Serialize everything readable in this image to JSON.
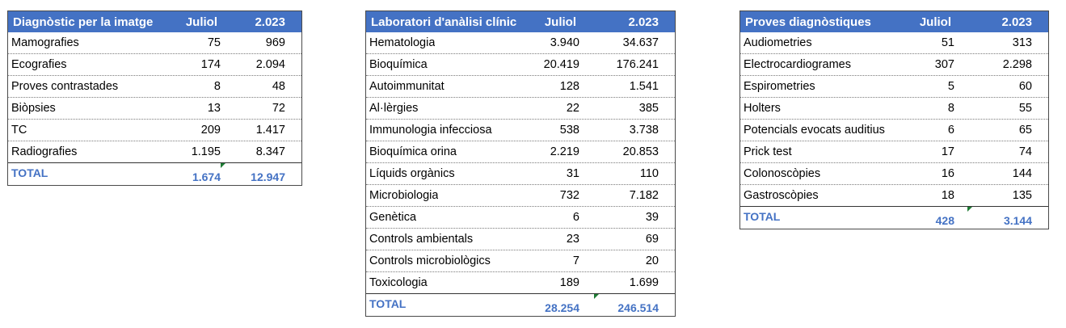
{
  "tables": [
    {
      "header": [
        "Diagnòstic per la imatge",
        "Juliol",
        "2.023"
      ],
      "rows": [
        [
          "Mamografies",
          "75",
          "969"
        ],
        [
          "Ecografies",
          "174",
          "2.094"
        ],
        [
          "Proves contrastades",
          "8",
          "48"
        ],
        [
          "Biòpsies",
          "13",
          "72"
        ],
        [
          "TC",
          "209",
          "1.417"
        ],
        [
          "Radiografies",
          "1.195",
          "8.347"
        ]
      ],
      "total": [
        "TOTAL",
        "1.674",
        "12.947"
      ]
    },
    {
      "header": [
        "Laboratori d'anàlisi clínic",
        "Juliol",
        "2.023"
      ],
      "rows": [
        [
          "Hematologia",
          "3.940",
          "34.637"
        ],
        [
          "Bioquímica",
          "20.419",
          "176.241"
        ],
        [
          "Autoimmunitat",
          "128",
          "1.541"
        ],
        [
          "Al·lèrgies",
          "22",
          "385"
        ],
        [
          "Immunologia infecciosa",
          "538",
          "3.738"
        ],
        [
          "Bioquímica orina",
          "2.219",
          "20.853"
        ],
        [
          "Líquids orgànics",
          "31",
          "110"
        ],
        [
          "Microbiologia",
          "732",
          "7.182"
        ],
        [
          "Genètica",
          "6",
          "39"
        ],
        [
          "Controls ambientals",
          "23",
          "69"
        ],
        [
          "Controls microbiològics",
          "7",
          "20"
        ],
        [
          "Toxicologia",
          "189",
          "1.699"
        ]
      ],
      "total": [
        "TOTAL",
        "28.254",
        "246.514"
      ]
    },
    {
      "header": [
        "Proves diagnòstiques",
        "Juliol",
        "2.023"
      ],
      "rows": [
        [
          "Audiometries",
          "51",
          "313"
        ],
        [
          "Electrocardiogrames",
          "307",
          "2.298"
        ],
        [
          "Espirometries",
          "5",
          "60"
        ],
        [
          "Holters",
          "8",
          "55"
        ],
        [
          "Potencials evocats auditius",
          "6",
          "65"
        ],
        [
          "Prick test",
          "17",
          "74"
        ],
        [
          "Colonoscòpies",
          "16",
          "144"
        ],
        [
          "Gastroscòpies",
          "18",
          "135"
        ]
      ],
      "total": [
        "TOTAL",
        "428",
        "3.144"
      ]
    }
  ],
  "colors": {
    "header_bg": "#4472c4",
    "total_text": "#4472c4",
    "flag": "#1e7b34"
  }
}
